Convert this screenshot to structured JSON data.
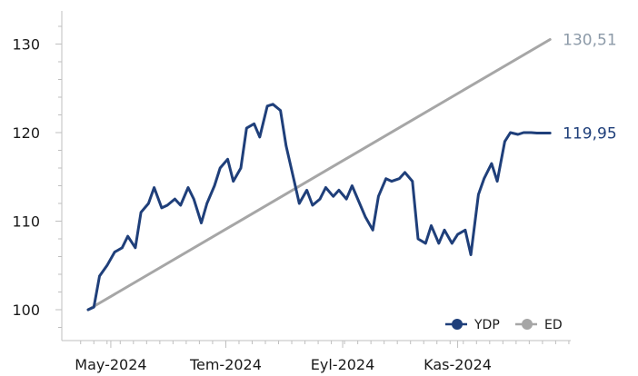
{
  "chart_data": {
    "type": "line",
    "x_ticks": [
      "May-2024",
      "Tem-2024",
      "Eyl-2024",
      "Kas-2024"
    ],
    "y_ticks": [
      "100",
      "110",
      "120",
      "130"
    ],
    "ylim": [
      98,
      133
    ],
    "grid": false,
    "legend_position": "bottom-right",
    "colors": {
      "YDP": "#1f3f7a",
      "ED": "#a6a6a6"
    },
    "series": [
      {
        "name": "YDP",
        "end_label": "119,95",
        "x": [
          "2024-04-19",
          "2024-04-22",
          "2024-04-25",
          "2024-04-29",
          "2024-05-03",
          "2024-05-07",
          "2024-05-10",
          "2024-05-14",
          "2024-05-17",
          "2024-05-21",
          "2024-05-24",
          "2024-05-28",
          "2024-05-31",
          "2024-06-04",
          "2024-06-07",
          "2024-06-11",
          "2024-06-14",
          "2024-06-18",
          "2024-06-21",
          "2024-06-25",
          "2024-06-28",
          "2024-07-02",
          "2024-07-05",
          "2024-07-09",
          "2024-07-12",
          "2024-07-16",
          "2024-07-19",
          "2024-07-23",
          "2024-07-26",
          "2024-07-30",
          "2024-08-02",
          "2024-08-06",
          "2024-08-09",
          "2024-08-13",
          "2024-08-16",
          "2024-08-20",
          "2024-08-23",
          "2024-08-27",
          "2024-08-30",
          "2024-09-03",
          "2024-09-06",
          "2024-09-10",
          "2024-09-13",
          "2024-09-17",
          "2024-09-20",
          "2024-09-24",
          "2024-09-27",
          "2024-10-01",
          "2024-10-04",
          "2024-10-08",
          "2024-10-11",
          "2024-10-15",
          "2024-10-18",
          "2024-10-22",
          "2024-10-25",
          "2024-10-29",
          "2024-11-01",
          "2024-11-05",
          "2024-11-08",
          "2024-11-12",
          "2024-11-15",
          "2024-11-19",
          "2024-11-22",
          "2024-11-26",
          "2024-11-29",
          "2024-12-03",
          "2024-12-06",
          "2024-12-10",
          "2024-12-13",
          "2024-12-17",
          "2024-12-20"
        ],
        "values": [
          100.0,
          100.3,
          103.8,
          105.0,
          106.5,
          107.0,
          108.3,
          107.0,
          111.0,
          112.0,
          113.8,
          111.5,
          111.8,
          112.5,
          111.8,
          113.8,
          112.5,
          109.8,
          112.0,
          114.0,
          116.0,
          117.0,
          114.5,
          116.0,
          120.5,
          121.0,
          119.5,
          123.0,
          123.2,
          122.5,
          118.5,
          114.8,
          112.0,
          113.5,
          111.8,
          112.5,
          113.8,
          112.8,
          113.5,
          112.5,
          114.0,
          112.0,
          110.5,
          109.0,
          112.8,
          114.8,
          114.5,
          114.8,
          115.5,
          114.5,
          108.0,
          107.5,
          109.5,
          107.5,
          109.0,
          107.5,
          108.5,
          109.0,
          106.2,
          113.0,
          114.8,
          116.5,
          114.5,
          119.0,
          120.0,
          119.8,
          120.0,
          120.0,
          119.95,
          119.95,
          119.95
        ]
      },
      {
        "name": "ED",
        "end_label": "130,51",
        "x": [
          "2024-04-19",
          "2024-12-20"
        ],
        "values": [
          100.0,
          130.51
        ]
      }
    ]
  }
}
